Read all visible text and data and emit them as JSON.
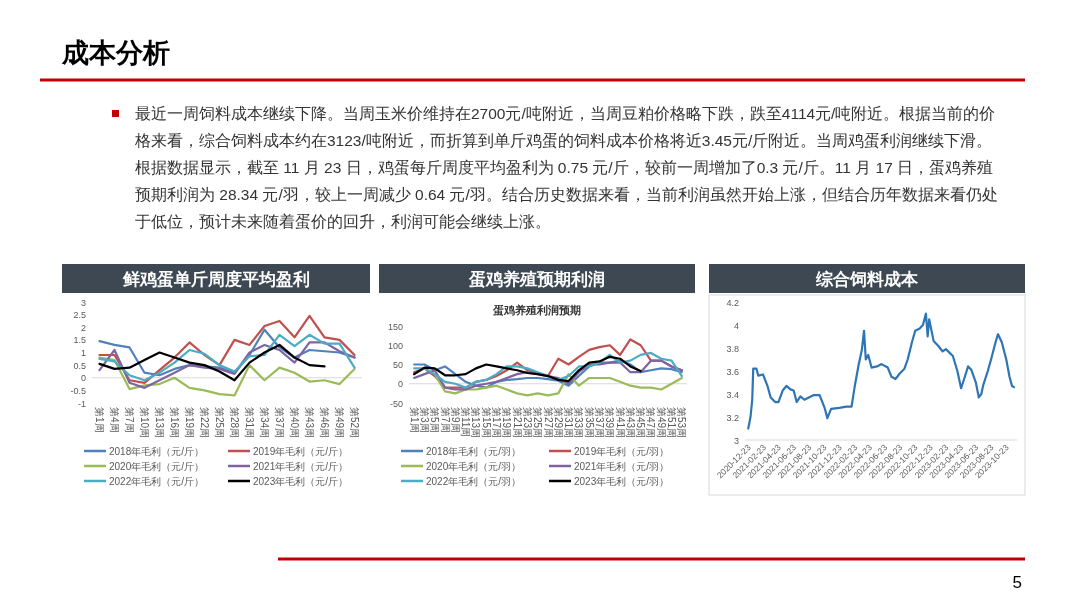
{
  "chart_data": [
    {
      "type": "line",
      "title": "鲜鸡蛋单斤周度平均盈利",
      "annotations": [
        "成本分析",
        "最近一周饲料成本继续下降。当周玉米价维持在2700元/吨附近，当周豆粕价格略下跌，跌至4114元/吨附近。根据当前的价格来看，综合饲料成本约在3123/吨附近，而折算到单斤鸡蛋的饲料成本价格将近3.45元/斤附近。当周鸡蛋利润继续下滑。根据数据显示，截至 11 月 23 日，鸡蛋每斤周度平均盈利为 0.75 元/斤，较前一周增加了0.3 元/斤。11 月 17 日，蛋鸡养殖预期利润为 28.34 元/羽，较上一周减少 0.64 元/羽。结合历史数据来看，当前利润虽然开始上涨，但结合历年数据来看仍处于低位，预计未来随着蛋价的回升，利润可能会继续上涨。",
        "5"
      ],
      "categories": [
        "第1周",
        "第4周",
        "第7周",
        "第10周",
        "第13周",
        "第16周",
        "第19周",
        "第22周",
        "第25周",
        "第28周",
        "第31周",
        "第34周",
        "第37周",
        "第40周",
        "第43周",
        "第46周",
        "第49周",
        "第52周"
      ],
      "ylim": [
        -1,
        3
      ],
      "yticks": [
        -1,
        -0.5,
        0,
        0.5,
        1,
        1.5,
        2,
        2.5,
        3
      ],
      "legend": "bottom",
      "series": [
        {
          "name": "2018年毛利（元/斤）",
          "color": "#4f81bd",
          "values": [
            1.45,
            1.3,
            1.2,
            0.2,
            0.1,
            0.35,
            0.5,
            0.45,
            0.4,
            0.2,
            0.9,
            1.9,
            1.2,
            0.8,
            1.1,
            1.05,
            1.0,
            0.8
          ]
        },
        {
          "name": "2019年毛利（元/斤）",
          "color": "#c0504d",
          "values": [
            0.9,
            0.9,
            -0.1,
            -0.2,
            0.3,
            0.8,
            1.4,
            0.9,
            0.5,
            1.5,
            1.3,
            2.05,
            2.25,
            1.6,
            2.45,
            1.6,
            1.5,
            0.9
          ]
        },
        {
          "name": "2020年毛利（元/斤）",
          "color": "#9bbb59",
          "values": [
            0.8,
            0.7,
            -0.45,
            -0.3,
            -0.25,
            0,
            -0.4,
            -0.5,
            -0.65,
            -0.7,
            0.5,
            -0.1,
            0.4,
            0.2,
            -0.15,
            -0.1,
            -0.25,
            0.35
          ]
        },
        {
          "name": "2021年毛利（元/斤）",
          "color": "#8064a2",
          "values": [
            0.3,
            1.1,
            -0.2,
            -0.4,
            -0.1,
            0.2,
            0.5,
            0.4,
            0.35,
            0.15,
            1.0,
            1.3,
            1.1,
            0.6,
            1.4,
            1.4,
            1.05,
            0.8
          ]
        },
        {
          "name": "2022年毛利（元/斤）",
          "color": "#4bacc6",
          "values": [
            0.75,
            0.65,
            0.1,
            -0.1,
            0.2,
            0.6,
            1.1,
            0.95,
            0.5,
            0.25,
            0.85,
            0.9,
            1.7,
            1.25,
            1.7,
            1.35,
            1.35,
            0.4
          ]
        },
        {
          "name": "2023年毛利（元/斤）",
          "color": "#000000",
          "values": [
            0.55,
            0.35,
            0.4,
            0.7,
            1.0,
            0.8,
            0.6,
            0.5,
            0.25,
            -0.1,
            0.6,
            1.0,
            1.3,
            0.8,
            0.5,
            0.45,
            null,
            null
          ]
        }
      ]
    },
    {
      "type": "line",
      "title": "蛋鸡养殖预期利润",
      "subtitle": "蛋鸡养殖利润预期",
      "categories": [
        "第1周",
        "第3周",
        "第5周",
        "第7周",
        "第9周",
        "第11周",
        "第13周",
        "第15周",
        "第17周",
        "第19周",
        "第21周",
        "第23周",
        "第25周",
        "第27周",
        "第29周",
        "第31周",
        "第33周",
        "第35周",
        "第37周",
        "第39周",
        "第41周",
        "第43周",
        "第45周",
        "第47周",
        "第49周",
        "第51周",
        "第53周"
      ],
      "ylim": [
        -50,
        150
      ],
      "yticks": [
        -50,
        0,
        50,
        100,
        150
      ],
      "legend": "bottom",
      "series": [
        {
          "name": "2018年毛利（元/羽）",
          "color": "#4f81bd",
          "values": [
            50,
            50,
            35,
            45,
            25,
            5,
            -5,
            -10,
            5,
            10,
            12,
            15,
            15,
            12,
            8,
            -5,
            20,
            45,
            55,
            55,
            60,
            50,
            30,
            35,
            40,
            38,
            30
          ]
        },
        {
          "name": "2019年毛利（元/羽）",
          "color": "#c0504d",
          "values": [
            30,
            40,
            20,
            -10,
            -10,
            -10,
            5,
            10,
            20,
            35,
            55,
            35,
            28,
            20,
            65,
            50,
            70,
            88,
            95,
            100,
            75,
            115,
            100,
            60,
            60,
            45,
            35
          ]
        },
        {
          "name": "2020年毛利（元/羽）",
          "color": "#9bbb59",
          "values": [
            25,
            40,
            25,
            -20,
            -25,
            -15,
            -15,
            -10,
            -5,
            -15,
            -25,
            -30,
            -25,
            -30,
            -25,
            25,
            -5,
            15,
            15,
            15,
            5,
            -5,
            -10,
            -10,
            -15,
            0,
            15
          ]
        },
        {
          "name": "2021年毛利（元/羽）",
          "color": "#8064a2",
          "values": [
            15,
            25,
            35,
            -10,
            -15,
            -15,
            -5,
            0,
            5,
            15,
            25,
            30,
            25,
            20,
            15,
            0,
            30,
            50,
            50,
            55,
            55,
            30,
            30,
            60,
            60,
            45,
            35
          ]
        },
        {
          "name": "2022年毛利（元/羽）",
          "color": "#4bacc6",
          "values": [
            40,
            40,
            25,
            5,
            0,
            -10,
            5,
            10,
            25,
            45,
            45,
            40,
            30,
            20,
            10,
            20,
            45,
            45,
            55,
            75,
            55,
            60,
            75,
            80,
            65,
            60,
            20
          ]
        },
        {
          "name": "2023年毛利（元/羽）",
          "color": "#000000",
          "values": [
            25,
            42,
            40,
            22,
            22,
            25,
            40,
            50,
            45,
            40,
            35,
            28,
            25,
            20,
            10,
            7,
            35,
            55,
            58,
            70,
            65,
            45,
            33,
            null,
            null,
            null,
            null
          ]
        }
      ]
    },
    {
      "type": "line",
      "title": "综合饲料成本",
      "x": [
        "2020-12-23",
        "2021-01-01",
        "2021-01-08",
        "2021-01-12",
        "2021-01-25",
        "2021-02-01",
        "2021-02-20",
        "2021-03-10",
        "2021-03-23",
        "2021-04-10",
        "2021-04-23",
        "2021-05-10",
        "2021-05-25",
        "2021-06-10",
        "2021-06-23",
        "2021-07-05",
        "2021-07-20",
        "2021-08-05",
        "2021-08-23",
        "2021-09-10",
        "2021-10-05",
        "2021-10-25",
        "2021-11-05",
        "2021-11-20",
        "2021-12-23",
        "2022-01-20",
        "2022-02-10",
        "2022-02-23",
        "2022-03-10",
        "2022-03-23",
        "2022-04-01",
        "2022-04-08",
        "2022-04-18",
        "2022-05-01",
        "2022-05-23",
        "2022-06-10",
        "2022-07-05",
        "2022-07-20",
        "2022-08-05",
        "2022-08-23",
        "2022-09-10",
        "2022-09-23",
        "2022-10-10",
        "2022-10-23",
        "2022-11-10",
        "2022-11-23",
        "2022-12-05",
        "2022-12-12",
        "2022-12-18",
        "2023-01-05",
        "2023-01-23",
        "2023-02-10",
        "2023-02-23",
        "2023-03-23",
        "2023-04-10",
        "2023-04-25",
        "2023-05-10",
        "2023-05-23",
        "2023-06-05",
        "2023-06-23",
        "2023-07-05",
        "2023-07-15",
        "2023-07-23",
        "2023-08-10",
        "2023-08-23",
        "2023-09-10",
        "2023-09-20",
        "2023-10-05",
        "2023-10-23",
        "2023-11-05",
        "2023-11-15",
        "2023-11-23"
      ],
      "xlim": [
        "2020-12-10",
        "2023-12-05"
      ],
      "xticks": [
        "2020-12-23",
        "2021-02-23",
        "2021-04-23",
        "2021-06-23",
        "2021-08-23",
        "2021-10-23",
        "2021-12-23",
        "2022-02-23",
        "2022-04-23",
        "2022-06-23",
        "2022-08-23",
        "2022-10-23",
        "2022-12-23",
        "2023-02-23",
        "2023-04-23",
        "2023-06-23",
        "2023-08-23",
        "2023-10-23"
      ],
      "ylim": [
        3,
        4.2
      ],
      "yticks": [
        3,
        3.2,
        3.4,
        3.6,
        3.8,
        4,
        4.2
      ],
      "series": [
        {
          "color": "#2e75b6",
          "values": [
            3.1,
            3.2,
            3.35,
            3.62,
            3.62,
            3.56,
            3.57,
            3.47,
            3.37,
            3.33,
            3.33,
            3.43,
            3.47,
            3.44,
            3.43,
            3.33,
            3.38,
            3.35,
            3.37,
            3.39,
            3.39,
            3.28,
            3.19,
            3.27,
            3.28,
            3.29,
            3.29,
            3.47,
            3.65,
            3.78,
            3.95,
            3.7,
            3.74,
            3.63,
            3.64,
            3.66,
            3.63,
            3.55,
            3.53,
            3.58,
            3.62,
            3.7,
            3.85,
            3.95,
            3.97,
            4.0,
            4.1,
            3.9,
            4.05,
            3.86,
            3.82,
            3.77,
            3.79,
            3.73,
            3.6,
            3.45,
            3.55,
            3.64,
            3.61,
            3.5,
            3.37,
            3.4,
            3.48,
            3.6,
            3.7,
            3.85,
            3.92,
            3.85,
            3.7,
            3.55,
            3.47,
            3.46
          ]
        }
      ]
    }
  ]
}
